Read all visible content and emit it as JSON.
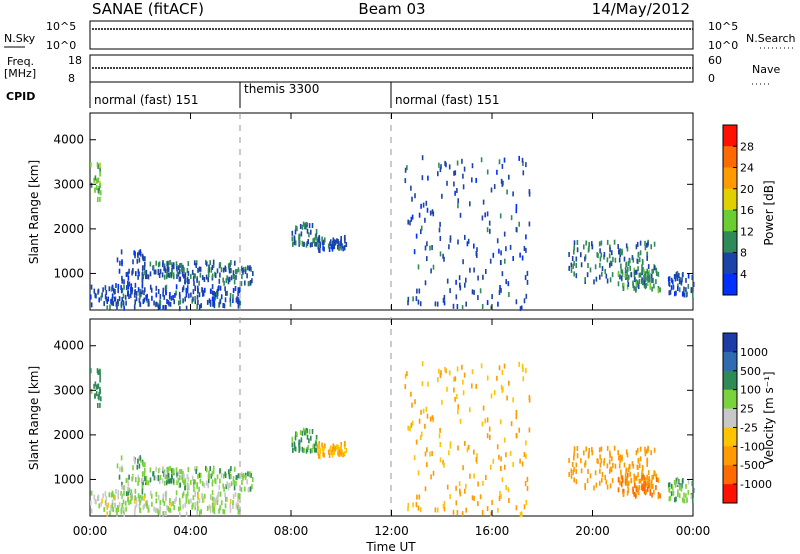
{
  "header": {
    "station": "SANAE (fitACF)",
    "beam": "Beam 03",
    "date": "14/May/2012"
  },
  "top_panels": {
    "nsky_label": "N.Sky",
    "nsearch_label": "N.Search",
    "log_tick_high": "10^5",
    "log_tick_low": "10^0",
    "freq_label_1": "Freq.",
    "freq_label_2": "[MHz]",
    "freq_ticks": [
      "18",
      "8"
    ],
    "nave_label": "Nave",
    "nave_ticks": [
      "60",
      "0"
    ],
    "cpid_label": "CPID",
    "cpid_segments": [
      {
        "start_hour": 0,
        "end_hour": 6,
        "label": "normal (fast) 151"
      },
      {
        "start_hour": 6,
        "end_hour": 12,
        "label": "themis 3300"
      },
      {
        "start_hour": 12,
        "end_hour": 24,
        "label": "normal (fast) 151"
      }
    ]
  },
  "axes": {
    "ylabel": "Slant Range [km]",
    "xlabel": "Time UT",
    "x_ticks": [
      "00:00",
      "04:00",
      "08:00",
      "12:00",
      "16:00",
      "20:00",
      "00:00"
    ],
    "y_ticks": [
      "1000",
      "2000",
      "3000",
      "4000"
    ]
  },
  "power_scale": {
    "label": "Power [dB]",
    "ticks": [
      "4",
      "8",
      "12",
      "16",
      "20",
      "24",
      "28"
    ],
    "colors": [
      "#0030ff",
      "#1c44a8",
      "#2e8b57",
      "#6acd32",
      "#e0d000",
      "#ff9a00",
      "#ff6a00",
      "#ff1000"
    ]
  },
  "velocity_scale": {
    "label": "Velocity [m s⁻¹]",
    "ticks": [
      "1000",
      "500",
      "100",
      "25",
      "-25",
      "-100",
      "-500",
      "-1000"
    ],
    "colors": [
      "#1c3ca8",
      "#2f6bb0",
      "#2e8b57",
      "#7ad23c",
      "#c8c8c8",
      "#ffc400",
      "#ff9a00",
      "#ff6a00",
      "#ff1000"
    ]
  },
  "chart_data": {
    "type": "heatmap",
    "title": "Beam 03",
    "xlabel": "Time UT",
    "ylabel": "Slant Range [km]",
    "xlim_hours": [
      0,
      24
    ],
    "ylim_km": [
      180,
      4600
    ],
    "panels": [
      "Power [dB]",
      "Velocity [m s⁻¹]"
    ],
    "scatter_regions": [
      {
        "hours": [
          0.0,
          0.4
        ],
        "km": [
          2600,
          3500
        ],
        "power_db": 14,
        "velocity": 200
      },
      {
        "hours": [
          1.0,
          2.2
        ],
        "km": [
          600,
          1500
        ],
        "power_db": 5,
        "velocity": 60
      },
      {
        "hours": [
          2.0,
          3.5
        ],
        "km": [
          900,
          1250
        ],
        "power_db": 7,
        "velocity": 80
      },
      {
        "hours": [
          3.5,
          6.5
        ],
        "km": [
          750,
          1250
        ],
        "power_db": 7,
        "velocity": 60
      },
      {
        "hours": [
          0.0,
          6.0
        ],
        "km": [
          200,
          700
        ],
        "power_db": 6,
        "velocity": 20
      },
      {
        "hours": [
          8.0,
          9.0
        ],
        "km": [
          1600,
          2100
        ],
        "power_db": 8,
        "velocity": 150
      },
      {
        "hours": [
          9.0,
          10.2
        ],
        "km": [
          1500,
          1800
        ],
        "power_db": 6,
        "velocity": -100
      },
      {
        "hours": [
          12.5,
          17.5
        ],
        "km": [
          200,
          3600
        ],
        "power_db": 6,
        "velocity": -100
      },
      {
        "hours": [
          19.0,
          22.5
        ],
        "km": [
          800,
          1700
        ],
        "power_db": 9,
        "velocity": -300
      },
      {
        "hours": [
          21.0,
          22.7
        ],
        "km": [
          600,
          1100
        ],
        "power_db": 10,
        "velocity": -500
      },
      {
        "hours": [
          23.0,
          24.0
        ],
        "km": [
          500,
          1000
        ],
        "power_db": 6,
        "velocity": 80
      }
    ]
  }
}
